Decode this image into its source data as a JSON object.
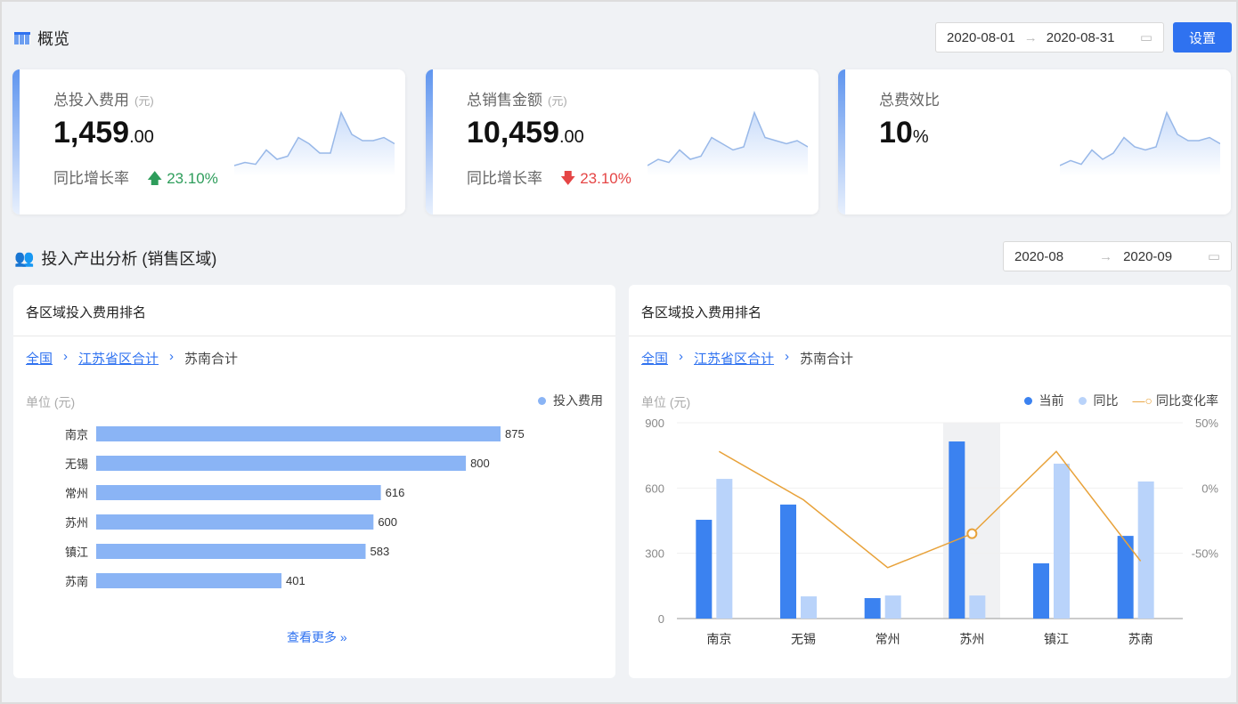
{
  "overview": {
    "title": "概览",
    "icon": "table-icon",
    "date_start": "2020-08-01",
    "date_end": "2020-08-31",
    "settings_label": "设置"
  },
  "kpis": [
    {
      "label": "总投入费用",
      "unit": "(元)",
      "value_int": "1,459",
      "value_dec": ".00",
      "rate_label": "同比增长率",
      "rate_value": "23.10%",
      "rate_dir": "up",
      "rate_color": "#2e9d5b"
    },
    {
      "label": "总销售金额",
      "unit": "(元)",
      "value_int": "10,459",
      "value_dec": ".00",
      "rate_label": "同比增长率",
      "rate_value": "23.10%",
      "rate_dir": "down",
      "rate_color": "#e54545"
    },
    {
      "label": "总费效比",
      "value_int": "10",
      "value_dec": "%"
    }
  ],
  "analysis": {
    "title": "投入产出分析 (销售区域)",
    "icon": "users-icon",
    "month_start": "2020-08",
    "month_end": "2020-09"
  },
  "left_panel": {
    "title": "各区域投入费用排名",
    "crumbs": [
      "全国",
      "江苏省区合计",
      "苏南合计"
    ],
    "unit": "单位 (元)",
    "legend": "投入费用",
    "more": "查看更多"
  },
  "right_panel": {
    "title": "各区域投入费用排名",
    "crumbs": [
      "全国",
      "江苏省区合计",
      "苏南合计"
    ],
    "unit": "单位 (元)",
    "legend": [
      "当前",
      "同比",
      "同比变化率"
    ]
  },
  "chart_data": [
    {
      "type": "bar",
      "orientation": "horizontal",
      "categories": [
        "南京",
        "无锡",
        "常州",
        "苏州",
        "镇江",
        "苏南"
      ],
      "series": [
        {
          "name": "投入费用",
          "values": [
            875,
            800,
            616,
            600,
            583,
            401
          ],
          "color": "#8ab4f5"
        }
      ],
      "ylabel": "单位 (元)",
      "legend": "top-right"
    },
    {
      "type": "bar+line",
      "categories": [
        "南京",
        "无锡",
        "常州",
        "苏州",
        "镇江",
        "苏南"
      ],
      "series": [
        {
          "name": "当前",
          "values": [
            454,
            524,
            94,
            814,
            254,
            380
          ],
          "color": "#3b82f0"
        },
        {
          "name": "同比",
          "values": [
            642,
            102,
            106,
            106,
            712,
            630
          ],
          "color": "#b9d3fa"
        },
        {
          "name": "同比变化率",
          "type": "line",
          "values": [
            28,
            -9,
            -61,
            -35,
            28,
            -56
          ],
          "color": "#e8a23a",
          "unit": "%"
        }
      ],
      "ylim": [
        0,
        900
      ],
      "yticks": [
        "0",
        "300",
        "600",
        "900"
      ],
      "y2lim": [
        -100,
        50
      ],
      "y2ticks": [
        "50%",
        "0%",
        "-50%"
      ],
      "ylabel": "单位 (元)",
      "highlight": "苏州",
      "legend": "top-right"
    }
  ]
}
